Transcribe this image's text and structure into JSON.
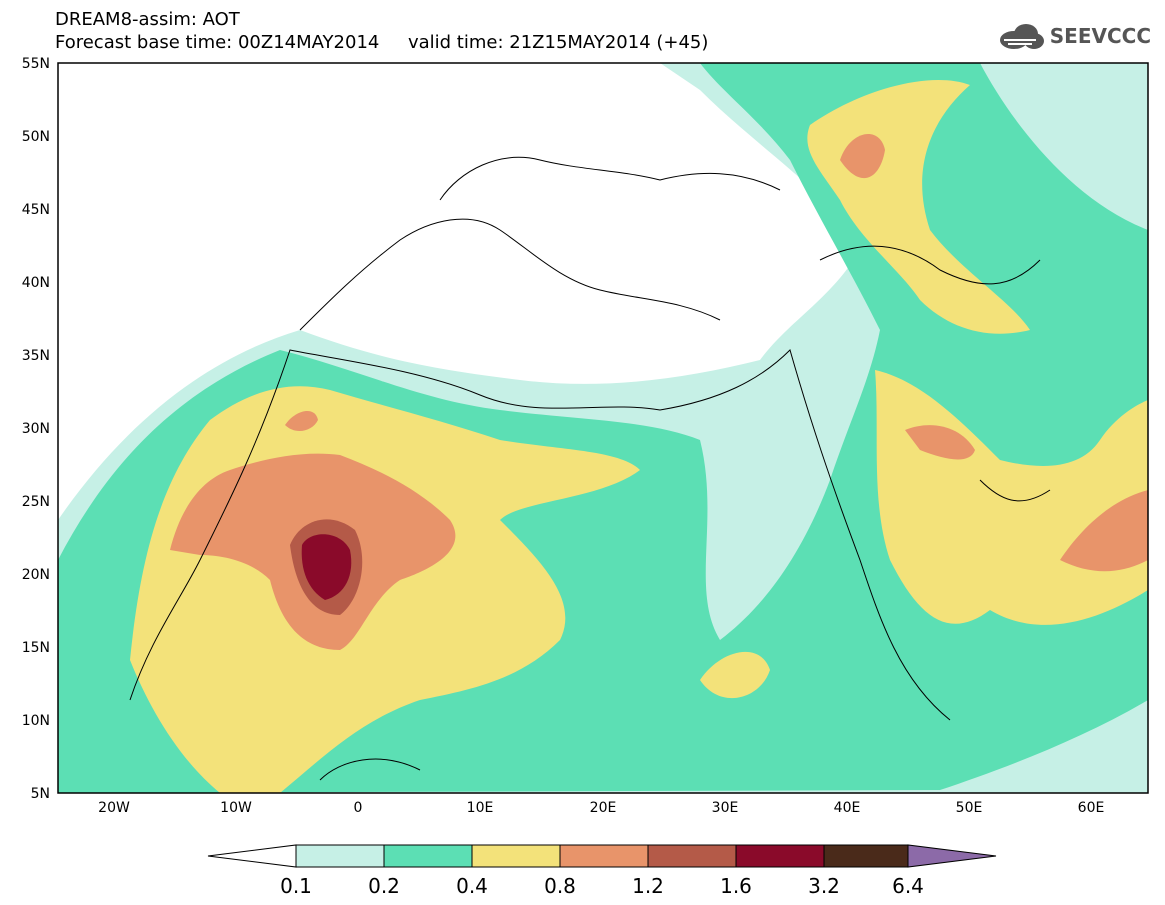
{
  "header": {
    "line1": "DREAM8-assim: AOT",
    "line2": "Forecast base time: 00Z14MAY2014     valid time: 21Z15MAY2014 (+45)"
  },
  "logo": {
    "text": "SEEVCCC",
    "icon": "cloud-icon"
  },
  "map": {
    "lat_labels": [
      "55N",
      "50N",
      "45N",
      "40N",
      "35N",
      "30N",
      "25N",
      "20N",
      "15N",
      "10N",
      "5N"
    ],
    "lon_labels": [
      "20W",
      "10W",
      "0",
      "10E",
      "20E",
      "30E",
      "40E",
      "50E",
      "60E"
    ]
  },
  "colorbar": {
    "colors": [
      "#ffffff",
      "#c6f0e6",
      "#5cdfb4",
      "#f3e27a",
      "#e8946a",
      "#b45a48",
      "#8a0a2a",
      "#4a2a1a",
      "#8c6aa8"
    ],
    "labels": [
      "0.1",
      "0.2",
      "0.4",
      "0.8",
      "1.2",
      "1.6",
      "3.2",
      "6.4"
    ]
  }
}
